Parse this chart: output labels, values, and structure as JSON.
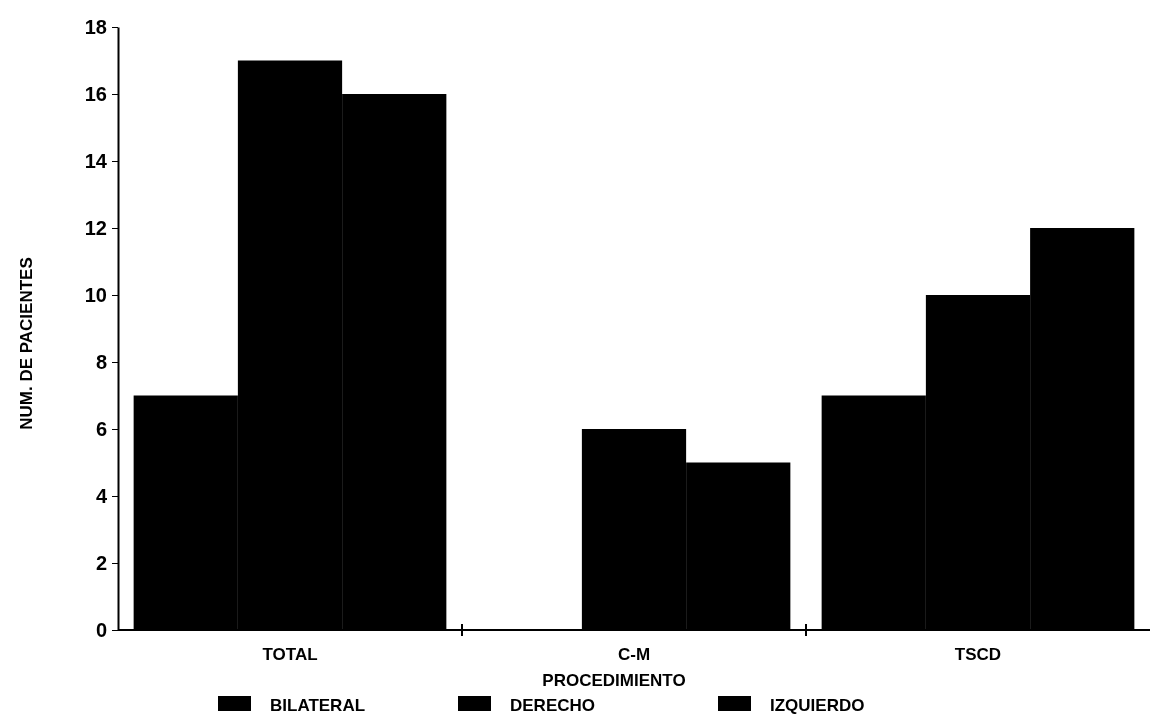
{
  "chart_data": {
    "type": "bar",
    "xlabel": "PROCEDIMIENTO",
    "ylabel": "NUM. DE PACIENTES",
    "categories": [
      "TOTAL",
      "C-M",
      "TSCD"
    ],
    "series": [
      {
        "name": "BILATERAL",
        "color": "#000000",
        "values": [
          7,
          0,
          7
        ]
      },
      {
        "name": "DERECHO",
        "color": "#000000",
        "values": [
          17,
          6,
          10
        ]
      },
      {
        "name": "IZQUIERDO",
        "color": "#000000",
        "values": [
          16,
          5,
          12
        ]
      }
    ],
    "ylim": [
      0,
      18
    ],
    "yticks": [
      0,
      2,
      4,
      6,
      8,
      10,
      12,
      14,
      16,
      18
    ],
    "grid": false,
    "legend": "bottom"
  }
}
